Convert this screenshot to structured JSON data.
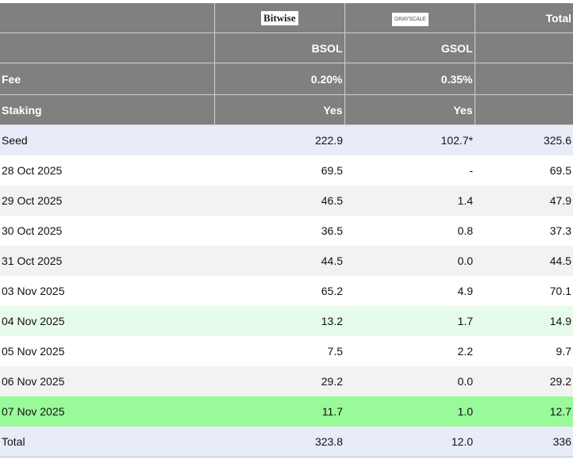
{
  "header": {
    "logos": [
      "Bitwise",
      "GRAYSCALE"
    ],
    "total": "Total",
    "tickers": [
      "BSOL",
      "GSOL"
    ],
    "fee": {
      "label": "Fee",
      "values": [
        "0.20%",
        "0.35%"
      ]
    },
    "staking": {
      "label": "Staking",
      "values": [
        "Yes",
        "Yes"
      ]
    }
  },
  "table": {
    "rows": [
      [
        "Seed",
        "222.9",
        "102.7*",
        "325.6"
      ],
      [
        "28 Oct 2025",
        "69.5",
        "-",
        "69.5"
      ],
      [
        "29 Oct 2025",
        "46.5",
        "1.4",
        "47.9"
      ],
      [
        "30 Oct 2025",
        "36.5",
        "0.8",
        "37.3"
      ],
      [
        "31 Oct 2025",
        "44.5",
        "0.0",
        "44.5"
      ],
      [
        "03 Nov 2025",
        "65.2",
        "4.9",
        "70.1"
      ],
      [
        "04 Nov 2025",
        "13.2",
        "1.7",
        "14.9"
      ],
      [
        "05 Nov 2025",
        "7.5",
        "2.2",
        "9.7"
      ],
      [
        "06 Nov 2025",
        "29.2",
        "0.0",
        "29.2"
      ],
      [
        "07 Nov 2025",
        "11.7",
        "1.0",
        "12.7"
      ],
      [
        "Total",
        "323.8",
        "12.0",
        "336"
      ]
    ]
  }
}
